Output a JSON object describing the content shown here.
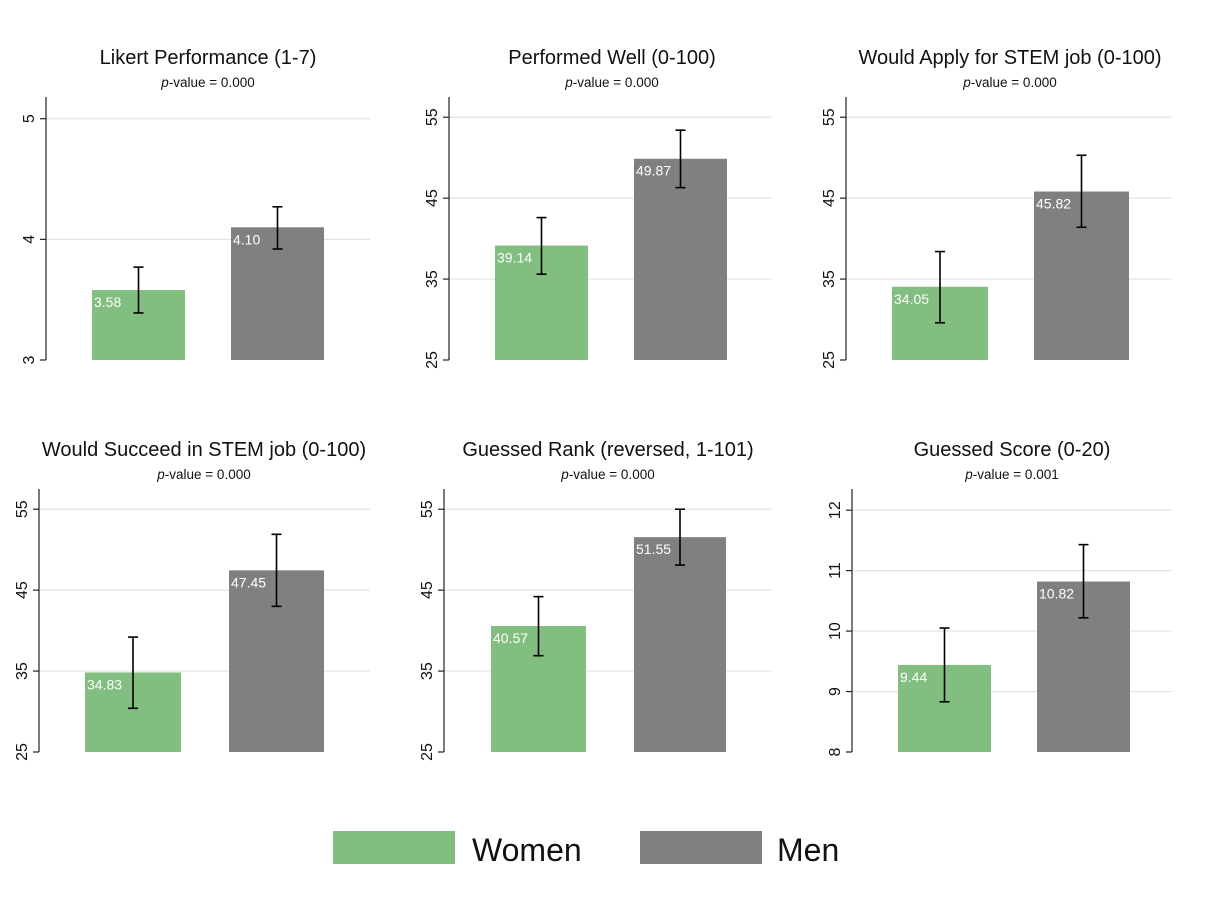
{
  "colors": {
    "women": "#81be7f",
    "men": "#808080",
    "grid": "#e3e3e3",
    "axis": "#222222",
    "error": "#000000"
  },
  "legend": {
    "women": "Women",
    "men": "Men"
  },
  "chart_data": [
    {
      "type": "bar",
      "title": "Likert Performance  (1-7)",
      "pvalue_prefix": "p",
      "pvalue_text": "-value = 0.000",
      "categories": [
        "Women",
        "Men"
      ],
      "values": [
        3.58,
        4.1
      ],
      "value_labels": [
        "3.58",
        "4.10"
      ],
      "ci_low": [
        3.39,
        3.92
      ],
      "ci_high": [
        3.77,
        4.27
      ],
      "ylim": [
        3,
        5.18
      ],
      "yticks": [
        3,
        4,
        5
      ],
      "ytick_labels": [
        "3",
        "4",
        "5"
      ]
    },
    {
      "type": "bar",
      "title": "Performed Well (0-100)",
      "pvalue_prefix": "p",
      "pvalue_text": "-value = 0.000",
      "categories": [
        "Women",
        "Men"
      ],
      "values": [
        39.14,
        49.87
      ],
      "value_labels": [
        "39.14",
        "49.87"
      ],
      "ci_low": [
        35.6,
        46.3
      ],
      "ci_high": [
        42.6,
        53.4
      ],
      "ylim": [
        25,
        57.5
      ],
      "yticks": [
        25,
        35,
        45,
        55
      ],
      "ytick_labels": [
        "25",
        "35",
        "45",
        "55"
      ]
    },
    {
      "type": "bar",
      "title": "Would Apply for STEM job (0-100)",
      "pvalue_prefix": "p",
      "pvalue_text": "-value = 0.000",
      "categories": [
        "Women",
        "Men"
      ],
      "values": [
        34.05,
        45.82
      ],
      "value_labels": [
        "34.05",
        "45.82"
      ],
      "ci_low": [
        29.6,
        41.4
      ],
      "ci_high": [
        38.4,
        50.3
      ],
      "ylim": [
        25,
        57.5
      ],
      "yticks": [
        25,
        35,
        45,
        55
      ],
      "ytick_labels": [
        "25",
        "35",
        "45",
        "55"
      ]
    },
    {
      "type": "bar",
      "title": "Would Succeed in STEM job (0-100)",
      "pvalue_prefix": "p",
      "pvalue_text": "-value = 0.000",
      "categories": [
        "Women",
        "Men"
      ],
      "values": [
        34.83,
        47.45
      ],
      "value_labels": [
        "34.83",
        "47.45"
      ],
      "ci_low": [
        30.4,
        43.0
      ],
      "ci_high": [
        39.2,
        51.9
      ],
      "ylim": [
        25,
        57.5
      ],
      "yticks": [
        25,
        35,
        45,
        55
      ],
      "ytick_labels": [
        "25",
        "35",
        "45",
        "55"
      ]
    },
    {
      "type": "bar",
      "title": "Guessed Rank (reversed, 1-101)",
      "pvalue_prefix": "p",
      "pvalue_text": "-value = 0.000",
      "categories": [
        "Women",
        "Men"
      ],
      "values": [
        40.57,
        51.55
      ],
      "value_labels": [
        "40.57",
        "51.55"
      ],
      "ci_low": [
        36.9,
        48.1
      ],
      "ci_high": [
        44.2,
        55.0
      ],
      "ylim": [
        25,
        57.5
      ],
      "yticks": [
        25,
        35,
        45,
        55
      ],
      "ytick_labels": [
        "25",
        "35",
        "45",
        "55"
      ]
    },
    {
      "type": "bar",
      "title": "Guessed Score (0-20)",
      "pvalue_prefix": "p",
      "pvalue_text": "-value = 0.001",
      "categories": [
        "Women",
        "Men"
      ],
      "values": [
        9.44,
        10.82
      ],
      "value_labels": [
        "9.44",
        "10.82"
      ],
      "ci_low": [
        8.83,
        10.22
      ],
      "ci_high": [
        10.05,
        11.43
      ],
      "ylim": [
        8,
        12.35
      ],
      "yticks": [
        8,
        9,
        10,
        11,
        12
      ],
      "ytick_labels": [
        "8",
        "9",
        "10",
        "11",
        "12"
      ]
    }
  ]
}
